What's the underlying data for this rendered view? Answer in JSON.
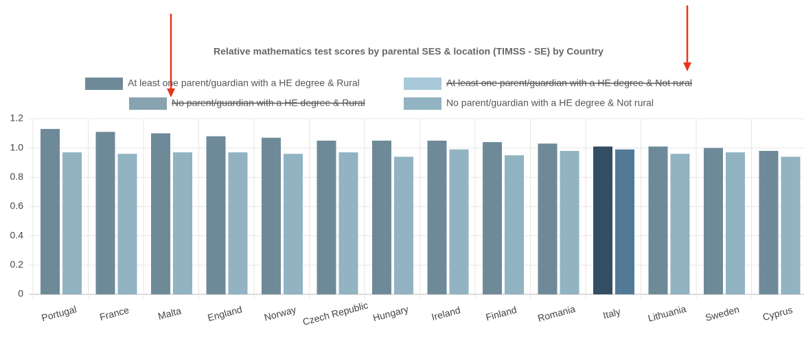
{
  "chart_data": {
    "type": "bar",
    "title": "Relative mathematics test scores by parental SES & location (TIMSS - SE) by Country",
    "categories": [
      "Portugal",
      "France",
      "Malta",
      "England",
      "Norway",
      "Czech Republic",
      "Hungary",
      "Ireland",
      "Finland",
      "Romania",
      "Italy",
      "Lithuania",
      "Sweden",
      "Cyprus"
    ],
    "highlight": "Italy",
    "series": [
      {
        "name": "At least one parent/guardian with a HE degree & Rural",
        "color": "#6e8a98",
        "highlight_color": "#334e63",
        "values": [
          1.13,
          1.11,
          1.1,
          1.08,
          1.07,
          1.05,
          1.05,
          1.05,
          1.04,
          1.03,
          1.01,
          1.01,
          1.0,
          0.98
        ]
      },
      {
        "name": "At least one parent/guardian with a HE degree & Not rural",
        "color": "#a8c9d9",
        "hidden": true
      },
      {
        "name": "No parent/guardian with a HE degree & Rural",
        "color": "#86a3af",
        "hidden": true
      },
      {
        "name": "No parent/guardian with a HE degree & Not rural",
        "color": "#91b3c2",
        "highlight_color": "#527a96",
        "values": [
          0.97,
          0.96,
          0.97,
          0.97,
          0.96,
          0.97,
          0.94,
          0.99,
          0.95,
          0.98,
          0.99,
          0.96,
          0.97,
          0.94
        ]
      }
    ],
    "ylim": [
      0,
      1.2
    ],
    "yticks": [
      0,
      0.2,
      0.4,
      0.6,
      0.8,
      {
        "value": 1,
        "label": "1.0"
      },
      1.2
    ],
    "grid": true
  }
}
